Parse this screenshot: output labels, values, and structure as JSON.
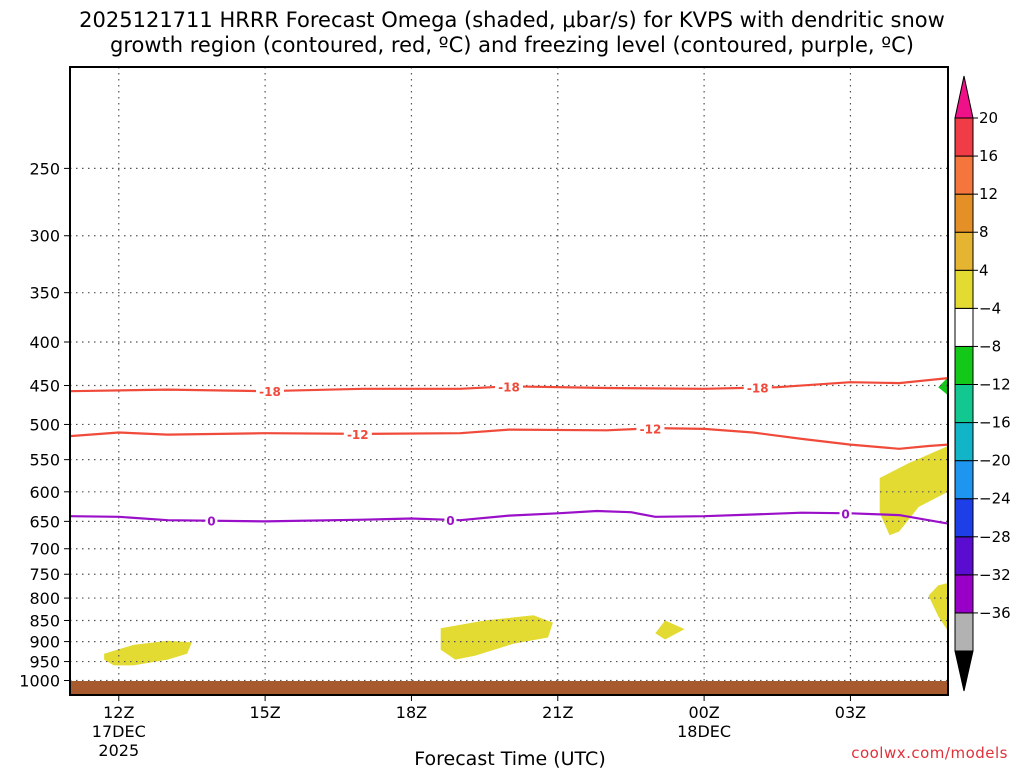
{
  "title": "2025121711 HRRR Forecast Omega (shaded, μbar/s) for KVPS with dendritic snow\ngrowth region (contoured, red, ºC) and freezing level (contoured, purple, ºC)",
  "credit": "coolwx.com/models",
  "chart_data": {
    "type": "time-height cross-section",
    "title": "2025121711 HRRR Forecast Omega (shaded, μbar/s) for KVPS with dendritic snow growth region (contoured, red, ºC) and freezing level (contoured, purple, ºC)",
    "xlabel": "Forecast Time (UTC)",
    "ylabel": "",
    "x_range_hours": [
      11,
      29
    ],
    "y_axis": {
      "scale": "log-pressure",
      "inverted": true,
      "range": [
        1040,
        190
      ]
    },
    "grid": true,
    "x_ticks": [
      {
        "hour": 12,
        "label": "12Z",
        "date": "17DEC",
        "year": "2025"
      },
      {
        "hour": 15,
        "label": "15Z",
        "date": "",
        "year": ""
      },
      {
        "hour": 18,
        "label": "18Z",
        "date": "",
        "year": ""
      },
      {
        "hour": 21,
        "label": "21Z",
        "date": "",
        "year": ""
      },
      {
        "hour": 24,
        "label": "00Z",
        "date": "18DEC",
        "year": ""
      },
      {
        "hour": 27,
        "label": "03Z",
        "date": "",
        "year": ""
      }
    ],
    "y_ticks": [
      250,
      300,
      350,
      400,
      450,
      500,
      550,
      600,
      650,
      700,
      750,
      800,
      850,
      900,
      950,
      1000
    ],
    "contours": [
      {
        "name": "-18",
        "color": "#f04a3a",
        "label_hours": [
          15.1,
          20.0,
          25.1
        ],
        "points": [
          [
            11,
            457
          ],
          [
            13,
            455
          ],
          [
            15,
            457
          ],
          [
            17,
            454
          ],
          [
            19,
            454
          ],
          [
            20,
            451
          ],
          [
            22,
            453
          ],
          [
            24,
            454
          ],
          [
            25.5,
            452
          ],
          [
            27,
            446
          ],
          [
            28,
            447
          ],
          [
            29,
            441
          ]
        ]
      },
      {
        "name": "-12",
        "color": "#f04a3a",
        "label_hours": [
          16.9,
          22.9
        ],
        "points": [
          [
            11,
            516
          ],
          [
            12,
            511
          ],
          [
            13,
            514
          ],
          [
            15,
            512
          ],
          [
            17,
            513
          ],
          [
            19,
            512
          ],
          [
            20,
            507
          ],
          [
            22,
            508
          ],
          [
            23,
            505
          ],
          [
            24,
            506
          ],
          [
            25,
            511
          ],
          [
            26,
            520
          ],
          [
            27,
            528
          ],
          [
            28,
            534
          ],
          [
            28.6,
            530
          ],
          [
            29,
            528
          ]
        ]
      },
      {
        "name": "0",
        "color": "#9a10c8",
        "label_hours": [
          13.9,
          18.8,
          26.9
        ],
        "points": [
          [
            11,
            641
          ],
          [
            12,
            642
          ],
          [
            13,
            648
          ],
          [
            15,
            650
          ],
          [
            17,
            647
          ],
          [
            18,
            645
          ],
          [
            19,
            648
          ],
          [
            20,
            640
          ],
          [
            21,
            636
          ],
          [
            21.8,
            632
          ],
          [
            22.5,
            634
          ],
          [
            23,
            642
          ],
          [
            24,
            641
          ],
          [
            25,
            638
          ],
          [
            26,
            635
          ],
          [
            27,
            636
          ],
          [
            28,
            639
          ],
          [
            29,
            654
          ]
        ]
      }
    ],
    "shaded_regions": [
      {
        "category": "4 to 8",
        "color": "#e3db32",
        "points": [
          [
            11.7,
            930
          ],
          [
            12.3,
            908
          ],
          [
            13,
            898
          ],
          [
            13.5,
            902
          ],
          [
            13.4,
            930
          ],
          [
            13,
            945
          ],
          [
            12.3,
            960
          ],
          [
            11.9,
            960
          ],
          [
            11.7,
            945
          ]
        ]
      },
      {
        "name": "4 to 8",
        "color": "#e3db32",
        "points": [
          [
            18.6,
            868
          ],
          [
            19.5,
            850
          ],
          [
            20.5,
            838
          ],
          [
            20.9,
            855
          ],
          [
            20.8,
            890
          ],
          [
            20.1,
            905
          ],
          [
            19.3,
            935
          ],
          [
            18.9,
            945
          ],
          [
            18.6,
            920
          ]
        ]
      },
      {
        "name": "4 to 8",
        "color": "#e3db32",
        "points": [
          [
            23,
            880
          ],
          [
            23.2,
            850
          ],
          [
            23.6,
            870
          ],
          [
            23.2,
            895
          ]
        ]
      },
      {
        "name": "4 to 8",
        "color": "#e3db32",
        "points": [
          [
            27.6,
            578
          ],
          [
            28.2,
            555
          ],
          [
            29,
            530
          ],
          [
            29,
            600
          ],
          [
            28.4,
            625
          ],
          [
            28,
            668
          ],
          [
            27.8,
            675
          ],
          [
            27.6,
            635
          ]
        ]
      },
      {
        "name": "4 to 8",
        "color": "#e3db32",
        "points": [
          [
            28.6,
            795
          ],
          [
            28.8,
            773
          ],
          [
            29,
            768
          ],
          [
            29,
            875
          ],
          [
            28.8,
            840
          ]
        ]
      },
      {
        "name": "-8 to -4",
        "color": "#14c81a",
        "points": [
          [
            28.8,
            452
          ],
          [
            29,
            440
          ],
          [
            29,
            462
          ]
        ]
      }
    ],
    "terrain": {
      "color": "#a65a2e",
      "top_pressure": 1018
    }
  },
  "colorbar": {
    "colors": [
      "#b2b2b2",
      "#9800c8",
      "#5a0cd0",
      "#1e3ee8",
      "#1e96f0",
      "#12b4c8",
      "#12c890",
      "#14c81a",
      "#ffffff",
      "#e3db32",
      "#e5b430",
      "#e59026",
      "#f4763c",
      "#f03c46"
    ],
    "levels": [
      "20",
      "16",
      "12",
      "8",
      "4",
      "−4",
      "−8",
      "−12",
      "−16",
      "−20",
      "−24",
      "−28",
      "−32",
      "−36"
    ],
    "top_arrow_color": "#ee1188",
    "bottom_arrow_color": "#000000"
  }
}
